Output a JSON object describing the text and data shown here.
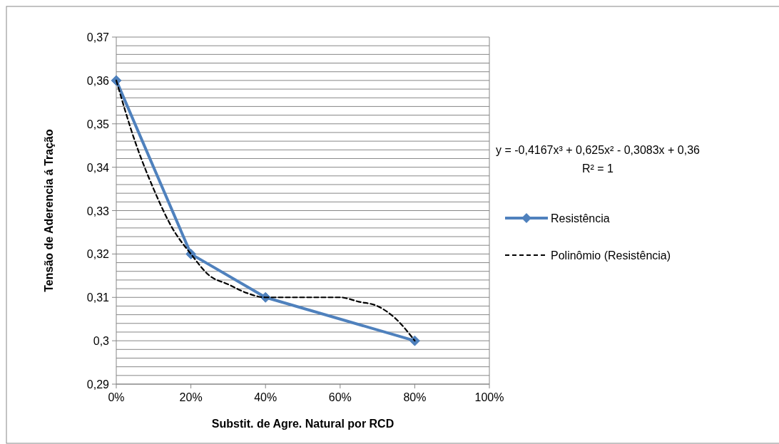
{
  "chart_data": {
    "type": "line",
    "xlabel": "Substit. de Agre. Natural por RCD",
    "ylabel": "Tensão de Aderencia á Tração",
    "xlim": [
      0,
      1
    ],
    "xticks": [
      {
        "value": 0,
        "label": "0%"
      },
      {
        "value": 0.2,
        "label": "20%"
      },
      {
        "value": 0.4,
        "label": "40%"
      },
      {
        "value": 0.6,
        "label": "60%"
      },
      {
        "value": 0.8,
        "label": "80%"
      },
      {
        "value": 1,
        "label": "100%"
      }
    ],
    "ylim": [
      0.29,
      0.37
    ],
    "yticks": [
      {
        "value": 0.29,
        "label": "0,29"
      },
      {
        "value": 0.292,
        "label": null
      },
      {
        "value": 0.294,
        "label": null
      },
      {
        "value": 0.296,
        "label": null
      },
      {
        "value": 0.298,
        "label": null
      },
      {
        "value": 0.3,
        "label": "0,3"
      },
      {
        "value": 0.302,
        "label": null
      },
      {
        "value": 0.304,
        "label": null
      },
      {
        "value": 0.306,
        "label": null
      },
      {
        "value": 0.308,
        "label": null
      },
      {
        "value": 0.31,
        "label": "0,31"
      },
      {
        "value": 0.312,
        "label": null
      },
      {
        "value": 0.314,
        "label": null
      },
      {
        "value": 0.316,
        "label": null
      },
      {
        "value": 0.318,
        "label": null
      },
      {
        "value": 0.32,
        "label": "0,32"
      },
      {
        "value": 0.322,
        "label": null
      },
      {
        "value": 0.324,
        "label": null
      },
      {
        "value": 0.326,
        "label": null
      },
      {
        "value": 0.328,
        "label": null
      },
      {
        "value": 0.33,
        "label": "0,33"
      },
      {
        "value": 0.332,
        "label": null
      },
      {
        "value": 0.334,
        "label": null
      },
      {
        "value": 0.336,
        "label": null
      },
      {
        "value": 0.338,
        "label": null
      },
      {
        "value": 0.34,
        "label": "0,34"
      },
      {
        "value": 0.342,
        "label": null
      },
      {
        "value": 0.344,
        "label": null
      },
      {
        "value": 0.346,
        "label": null
      },
      {
        "value": 0.348,
        "label": null
      },
      {
        "value": 0.35,
        "label": "0,35"
      },
      {
        "value": 0.352,
        "label": null
      },
      {
        "value": 0.354,
        "label": null
      },
      {
        "value": 0.356,
        "label": null
      },
      {
        "value": 0.358,
        "label": null
      },
      {
        "value": 0.36,
        "label": "0,36"
      },
      {
        "value": 0.362,
        "label": null
      },
      {
        "value": 0.364,
        "label": null
      },
      {
        "value": 0.366,
        "label": null
      },
      {
        "value": 0.368,
        "label": null
      },
      {
        "value": 0.37,
        "label": "0,37"
      }
    ],
    "grid": "y",
    "legend": "right",
    "series": [
      {
        "name": "Resistência",
        "color": "#4f81bd",
        "marker": "diamond",
        "line_style": "solid",
        "x": [
          0,
          0.2,
          0.4,
          0.8
        ],
        "values": [
          0.36,
          0.32,
          0.31,
          0.3
        ]
      },
      {
        "name": "Polinômio (Resistência)",
        "color": "#000000",
        "marker": "none",
        "line_style": "dashed",
        "x": [
          0,
          0.05,
          0.1,
          0.15,
          0.2,
          0.25,
          0.3,
          0.35,
          0.4,
          0.45,
          0.5,
          0.55,
          0.6,
          0.65,
          0.7,
          0.75,
          0.8
        ],
        "values": [
          0.36,
          0.346,
          0.335,
          0.326,
          0.32,
          0.315,
          0.313,
          0.311,
          0.31,
          0.31,
          0.31,
          0.31,
          0.31,
          0.309,
          0.308,
          0.305,
          0.3
        ]
      }
    ],
    "annotations": [
      "y = -0,4167x³ + 0,625x² - 0,3083x + 0,36",
      "R² = 1"
    ]
  }
}
